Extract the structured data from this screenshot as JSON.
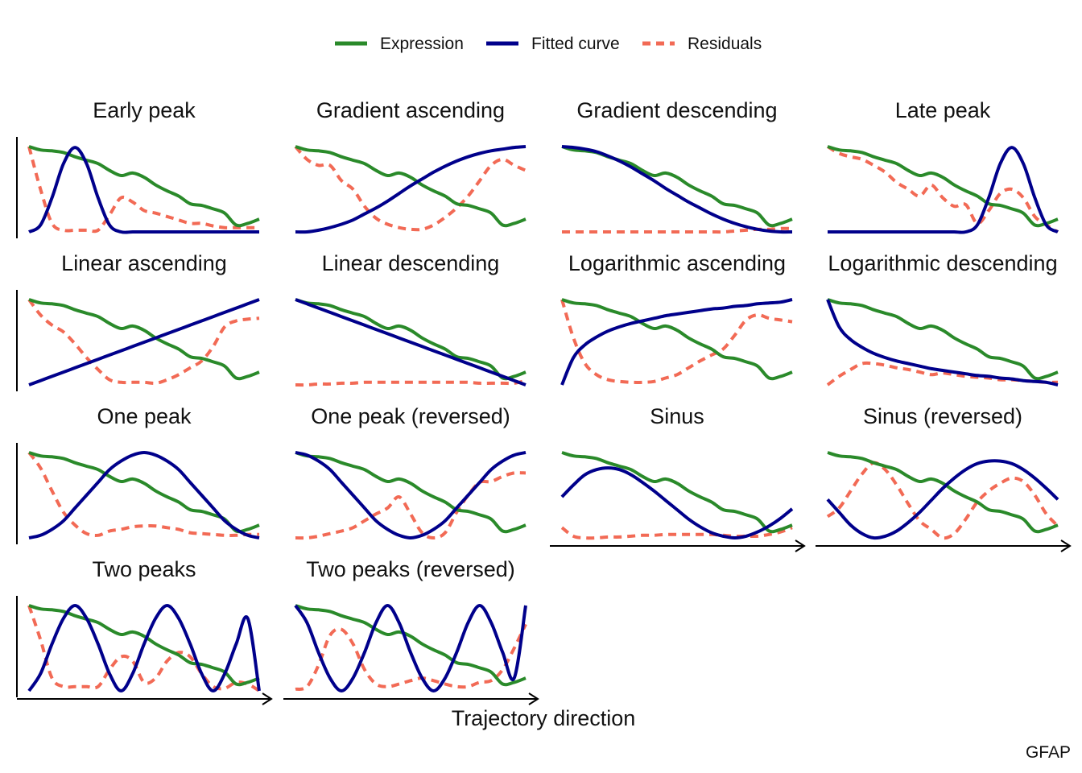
{
  "legend": [
    {
      "label": "Expression",
      "color": "#2a8a2a",
      "dash": "solid"
    },
    {
      "label": "Fitted curve",
      "color": "#00008b",
      "dash": "solid"
    },
    {
      "label": "Residuals",
      "color": "#f26a55",
      "dash": "dashed"
    }
  ],
  "xlabel": "Trajectory direction",
  "caption": "GFAP",
  "chart_data": {
    "type": "line",
    "layout": "4x4 facet grid, 14 panels",
    "legend_position": "top",
    "grid": false,
    "x_range": [
      0,
      1
    ],
    "y_range": [
      0,
      1
    ],
    "x_points": [
      0,
      0.05,
      0.1,
      0.15,
      0.2,
      0.25,
      0.3,
      0.35,
      0.4,
      0.45,
      0.5,
      0.55,
      0.6,
      0.65,
      0.7,
      0.75,
      0.8,
      0.85,
      0.9,
      0.95,
      1
    ],
    "expression": [
      1.0,
      0.96,
      0.95,
      0.93,
      0.88,
      0.84,
      0.8,
      0.72,
      0.66,
      0.69,
      0.64,
      0.55,
      0.48,
      0.42,
      0.33,
      0.31,
      0.27,
      0.22,
      0.08,
      0.1,
      0.15
    ],
    "panels": [
      {
        "title": "Early peak",
        "fitted": [
          0.0,
          0.08,
          0.4,
          0.8,
          0.99,
          0.8,
          0.4,
          0.08,
          0.0,
          0.0,
          0.0,
          0.0,
          0.0,
          0.0,
          0.0,
          0.0,
          0.0,
          0.0,
          0.0,
          0.0,
          0.0
        ],
        "residuals": [
          1.0,
          0.5,
          0.1,
          0.02,
          0.02,
          0.02,
          0.02,
          0.2,
          0.4,
          0.35,
          0.25,
          0.22,
          0.18,
          0.14,
          0.1,
          0.1,
          0.07,
          0.05,
          0.05,
          0.05,
          0.05
        ]
      },
      {
        "title": "Gradient ascending",
        "fitted": [
          0.0,
          0.0,
          0.02,
          0.05,
          0.09,
          0.14,
          0.21,
          0.28,
          0.36,
          0.45,
          0.54,
          0.62,
          0.7,
          0.77,
          0.83,
          0.88,
          0.92,
          0.95,
          0.97,
          0.99,
          1.0
        ],
        "residuals": [
          1.0,
          0.85,
          0.78,
          0.78,
          0.6,
          0.5,
          0.3,
          0.16,
          0.09,
          0.05,
          0.03,
          0.03,
          0.08,
          0.17,
          0.28,
          0.42,
          0.6,
          0.78,
          0.85,
          0.78,
          0.72
        ]
      },
      {
        "title": "Gradient descending",
        "fitted": [
          1.0,
          0.99,
          0.97,
          0.94,
          0.89,
          0.83,
          0.76,
          0.68,
          0.6,
          0.51,
          0.43,
          0.35,
          0.28,
          0.21,
          0.15,
          0.1,
          0.06,
          0.03,
          0.01,
          0.0,
          0.0
        ],
        "residuals": [
          0.0,
          0.0,
          0.0,
          0.0,
          0.0,
          0.0,
          0.0,
          0.0,
          0.0,
          0.0,
          0.0,
          0.0,
          0.0,
          0.0,
          0.0,
          0.01,
          0.02,
          0.03,
          0.03,
          0.04,
          0.04
        ]
      },
      {
        "title": "Late peak",
        "fitted": [
          0.0,
          0.0,
          0.0,
          0.0,
          0.0,
          0.0,
          0.0,
          0.0,
          0.0,
          0.0,
          0.0,
          0.0,
          0.0,
          0.08,
          0.4,
          0.8,
          0.99,
          0.8,
          0.4,
          0.08,
          0.0
        ],
        "residuals": [
          1.0,
          0.92,
          0.88,
          0.85,
          0.78,
          0.7,
          0.58,
          0.5,
          0.42,
          0.55,
          0.4,
          0.3,
          0.32,
          0.1,
          0.25,
          0.45,
          0.5,
          0.4,
          0.18,
          0.08,
          0.0
        ]
      },
      {
        "title": "Linear ascending",
        "fitted": [
          0.0,
          0.05,
          0.1,
          0.15,
          0.2,
          0.25,
          0.3,
          0.35,
          0.4,
          0.45,
          0.5,
          0.55,
          0.6,
          0.65,
          0.7,
          0.75,
          0.8,
          0.85,
          0.9,
          0.95,
          1.0
        ],
        "residuals": [
          1.0,
          0.82,
          0.7,
          0.62,
          0.48,
          0.32,
          0.18,
          0.06,
          0.03,
          0.03,
          0.03,
          0.02,
          0.06,
          0.12,
          0.2,
          0.28,
          0.45,
          0.68,
          0.75,
          0.77,
          0.78
        ]
      },
      {
        "title": "Linear descending",
        "fitted": [
          1.0,
          0.95,
          0.9,
          0.85,
          0.8,
          0.75,
          0.7,
          0.65,
          0.6,
          0.55,
          0.5,
          0.45,
          0.4,
          0.35,
          0.3,
          0.25,
          0.2,
          0.15,
          0.1,
          0.05,
          0.0
        ],
        "residuals": [
          0.0,
          0.0,
          0.01,
          0.01,
          0.02,
          0.02,
          0.03,
          0.03,
          0.03,
          0.03,
          0.03,
          0.03,
          0.03,
          0.03,
          0.03,
          0.03,
          0.02,
          0.02,
          0.02,
          0.02,
          0.05
        ]
      },
      {
        "title": "Logarithmic ascending",
        "fitted": [
          0.0,
          0.32,
          0.47,
          0.56,
          0.63,
          0.68,
          0.72,
          0.75,
          0.78,
          0.81,
          0.83,
          0.85,
          0.87,
          0.89,
          0.9,
          0.92,
          0.93,
          0.95,
          0.96,
          0.97,
          1.0
        ],
        "residuals": [
          1.0,
          0.55,
          0.25,
          0.12,
          0.06,
          0.04,
          0.03,
          0.03,
          0.04,
          0.08,
          0.12,
          0.2,
          0.28,
          0.35,
          0.42,
          0.58,
          0.76,
          0.82,
          0.78,
          0.76,
          0.74
        ]
      },
      {
        "title": "Logarithmic descending",
        "fitted": [
          1.0,
          0.68,
          0.53,
          0.44,
          0.37,
          0.32,
          0.28,
          0.25,
          0.22,
          0.19,
          0.17,
          0.15,
          0.13,
          0.11,
          0.1,
          0.08,
          0.07,
          0.05,
          0.04,
          0.03,
          0.0
        ],
        "residuals": [
          0.0,
          0.1,
          0.18,
          0.25,
          0.25,
          0.23,
          0.2,
          0.18,
          0.15,
          0.12,
          0.14,
          0.12,
          0.1,
          0.09,
          0.08,
          0.06,
          0.06,
          0.05,
          0.04,
          0.03,
          0.03
        ]
      },
      {
        "title": "One peak",
        "fitted": [
          0.0,
          0.03,
          0.1,
          0.2,
          0.35,
          0.5,
          0.65,
          0.8,
          0.9,
          0.97,
          1.0,
          0.97,
          0.9,
          0.8,
          0.65,
          0.5,
          0.35,
          0.2,
          0.1,
          0.03,
          0.0
        ],
        "residuals": [
          1.0,
          0.82,
          0.55,
          0.3,
          0.15,
          0.05,
          0.03,
          0.08,
          0.1,
          0.13,
          0.14,
          0.14,
          0.12,
          0.1,
          0.06,
          0.05,
          0.04,
          0.03,
          0.03,
          0.04,
          0.04
        ]
      },
      {
        "title": "One peak (reversed)",
        "fitted": [
          1.0,
          0.97,
          0.9,
          0.8,
          0.65,
          0.5,
          0.35,
          0.2,
          0.1,
          0.03,
          0.0,
          0.03,
          0.1,
          0.2,
          0.35,
          0.5,
          0.65,
          0.8,
          0.9,
          0.97,
          1.0
        ],
        "residuals": [
          0.0,
          0.0,
          0.02,
          0.05,
          0.08,
          0.12,
          0.2,
          0.28,
          0.35,
          0.48,
          0.28,
          0.06,
          0.0,
          0.06,
          0.3,
          0.5,
          0.65,
          0.66,
          0.72,
          0.76,
          0.76
        ]
      },
      {
        "title": "Sinus",
        "fitted": [
          0.48,
          0.62,
          0.74,
          0.8,
          0.82,
          0.8,
          0.74,
          0.65,
          0.55,
          0.44,
          0.33,
          0.22,
          0.13,
          0.06,
          0.02,
          0.0,
          0.02,
          0.07,
          0.14,
          0.23,
          0.34
        ],
        "residuals": [
          0.12,
          0.02,
          0.0,
          0.0,
          0.01,
          0.01,
          0.02,
          0.03,
          0.03,
          0.04,
          0.04,
          0.04,
          0.04,
          0.04,
          0.03,
          0.02,
          0.02,
          0.02,
          0.04,
          0.07,
          0.12
        ]
      },
      {
        "title": "Sinus (reversed)",
        "fitted": [
          0.45,
          0.3,
          0.15,
          0.05,
          0.0,
          0.02,
          0.08,
          0.18,
          0.3,
          0.44,
          0.58,
          0.7,
          0.8,
          0.87,
          0.9,
          0.9,
          0.87,
          0.8,
          0.7,
          0.58,
          0.45
        ],
        "residuals": [
          0.25,
          0.35,
          0.55,
          0.75,
          0.88,
          0.8,
          0.62,
          0.4,
          0.2,
          0.1,
          0.0,
          0.05,
          0.22,
          0.42,
          0.55,
          0.64,
          0.7,
          0.66,
          0.5,
          0.28,
          0.14
        ]
      },
      {
        "title": "Two peaks",
        "fitted": [
          0.0,
          0.2,
          0.55,
          0.85,
          1.0,
          0.85,
          0.55,
          0.2,
          0.0,
          0.2,
          0.55,
          0.85,
          1.0,
          0.85,
          0.55,
          0.2,
          0.0,
          0.2,
          0.55,
          0.85,
          0.0
        ],
        "residuals": [
          1.0,
          0.6,
          0.15,
          0.05,
          0.05,
          0.05,
          0.05,
          0.25,
          0.4,
          0.35,
          0.1,
          0.15,
          0.35,
          0.45,
          0.4,
          0.2,
          0.05,
          0.03,
          0.1,
          0.08,
          0.0
        ]
      },
      {
        "title": "Two peaks (reversed)",
        "fitted": [
          1.0,
          0.8,
          0.45,
          0.15,
          0.0,
          0.15,
          0.45,
          0.8,
          1.0,
          0.8,
          0.45,
          0.15,
          0.0,
          0.15,
          0.45,
          0.8,
          1.0,
          0.8,
          0.45,
          0.15,
          1.0
        ],
        "residuals": [
          0.02,
          0.05,
          0.3,
          0.65,
          0.72,
          0.55,
          0.25,
          0.08,
          0.05,
          0.08,
          0.12,
          0.15,
          0.12,
          0.08,
          0.05,
          0.05,
          0.1,
          0.12,
          0.25,
          0.5,
          0.78
        ]
      }
    ]
  }
}
